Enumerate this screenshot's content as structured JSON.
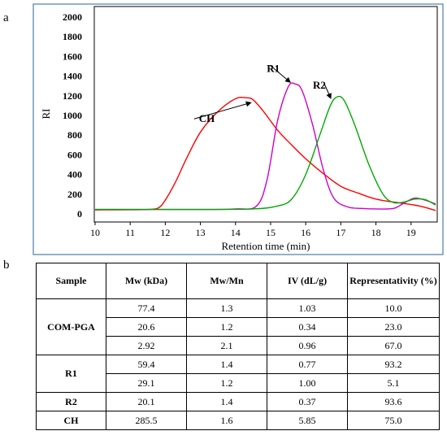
{
  "panel_a_label": "a",
  "panel_b_label": "b",
  "chart_data": {
    "type": "line",
    "xlabel": "Retention time (min)",
    "ylabel": "RI",
    "xlim": [
      10,
      19.7
    ],
    "ylim": [
      0,
      2000
    ],
    "x_ticks": [
      "10",
      "11",
      "12",
      "13",
      "14",
      "15",
      "16",
      "17",
      "18",
      "19"
    ],
    "y_ticks": [
      "0",
      "200",
      "400",
      "600",
      "800",
      "1000",
      "1200",
      "1400",
      "1600",
      "1800",
      "2000"
    ],
    "grid": false,
    "series": [
      {
        "name": "CH",
        "color": "#ff0000",
        "x": [
          10,
          11,
          11.5,
          11.8,
          12,
          12.3,
          12.6,
          13,
          13.5,
          14,
          14.3,
          14.5,
          14.8,
          15.2,
          15.6,
          16,
          16.5,
          17,
          17.5,
          18,
          18.5,
          19,
          19.3,
          19.7
        ],
        "y": [
          40,
          42,
          45,
          60,
          140,
          330,
          560,
          830,
          1040,
          1170,
          1180,
          1160,
          1040,
          850,
          700,
          560,
          410,
          280,
          210,
          150,
          120,
          95,
          75,
          35
        ]
      },
      {
        "name": "R1",
        "color": "#cc00cc",
        "x": [
          10,
          13,
          14,
          14.6,
          14.9,
          15.2,
          15.5,
          15.7,
          15.9,
          16.2,
          16.5,
          16.8,
          17.2,
          17.6,
          18,
          18.5,
          18.8,
          19.1,
          19.4,
          19.7
        ],
        "y": [
          45,
          45,
          50,
          80,
          350,
          950,
          1290,
          1320,
          1250,
          900,
          450,
          160,
          70,
          55,
          50,
          55,
          110,
          160,
          140,
          100
        ]
      },
      {
        "name": "R2",
        "color": "#00aa00",
        "x": [
          10,
          13,
          14.5,
          15.2,
          15.6,
          16,
          16.4,
          16.7,
          16.9,
          17.1,
          17.4,
          17.8,
          18.2,
          18.5,
          18.8,
          19.1,
          19.4,
          19.7
        ],
        "y": [
          45,
          45,
          50,
          80,
          150,
          400,
          800,
          1100,
          1190,
          1150,
          900,
          500,
          200,
          115,
          120,
          150,
          145,
          90
        ]
      }
    ],
    "annotations": [
      {
        "text": "CH",
        "target_series": "CH"
      },
      {
        "text": "R1",
        "target_series": "R1"
      },
      {
        "text": "R2",
        "target_series": "R2"
      }
    ]
  },
  "table": {
    "headers": [
      "Sample",
      "Mw (kDa)",
      "Mw/Mn",
      "IV (dL/g)",
      "Representativity (%)"
    ],
    "groups": [
      {
        "sample": "COM-PGA",
        "rows": [
          [
            "77.4",
            "1.3",
            "1.03",
            "10.0"
          ],
          [
            "20.6",
            "1.2",
            "0.34",
            "23.0"
          ],
          [
            "2.92",
            "2.1",
            "0.96",
            "67.0"
          ]
        ]
      },
      {
        "sample": "R1",
        "rows": [
          [
            "59.4",
            "1.4",
            "0.77",
            "93.2"
          ],
          [
            "29.1",
            "1.2",
            "1.00",
            "5.1"
          ]
        ]
      },
      {
        "sample": "R2",
        "rows": [
          [
            "20.1",
            "1.4",
            "0.37",
            "93.6"
          ]
        ]
      },
      {
        "sample": "CH",
        "rows": [
          [
            "285.5",
            "1.6",
            "5.85",
            "75.0"
          ]
        ]
      }
    ]
  }
}
